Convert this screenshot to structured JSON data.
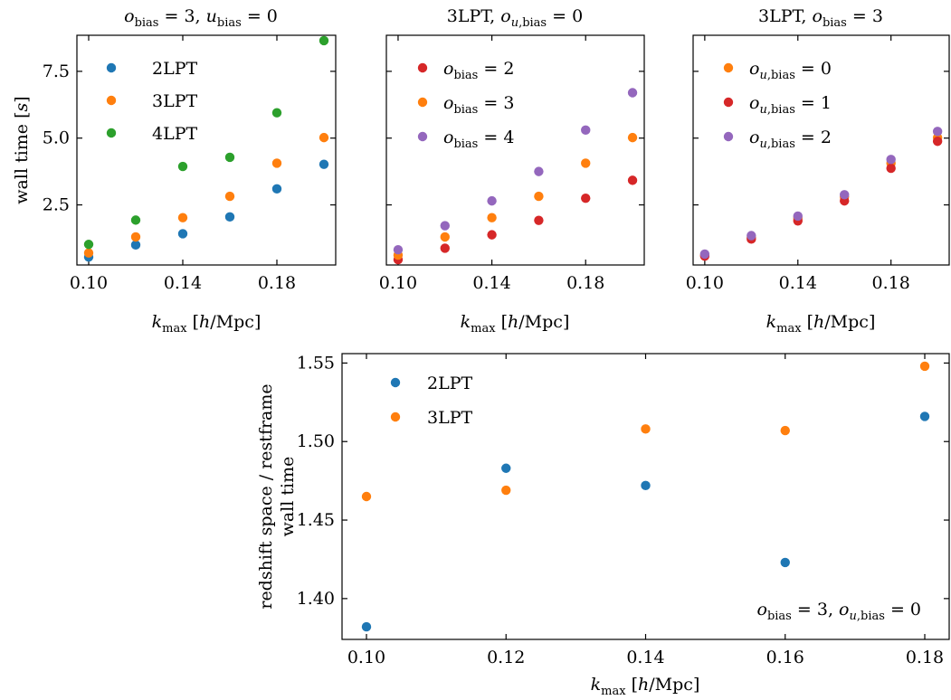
{
  "figure": {
    "panel_a_title": "o_bias = 3, u_bias = 0",
    "panel_b_title": "3LPT, o_u,bias = 0",
    "panel_c_title": "3LPT, o_bias = 3",
    "xlabel": "k_max [h/Mpc]",
    "ylabel_top": "wall time [s]",
    "ylabel_bottom_line1": "redshift space / restframe",
    "ylabel_bottom_line2": "wall time",
    "annotation_bottom": "o_bias = 3, o_u,bias = 0"
  },
  "colors": {
    "blue": "#1f77b4",
    "orange": "#ff7f0e",
    "green": "#2ca02c",
    "red": "#d62728",
    "purple": "#9467bd"
  },
  "chart_data": [
    {
      "type": "scatter",
      "title": "o_bias = 3, u_bias = 0",
      "xlabel": "k_max [h/Mpc]",
      "ylabel": "wall time [s]",
      "xlim": [
        0.095,
        0.205
      ],
      "ylim": [
        0.25,
        8.85
      ],
      "xticks": [
        0.1,
        0.14,
        0.18
      ],
      "xtick_labels": [
        "0.10",
        "0.14",
        "0.18"
      ],
      "yticks": [
        2.5,
        5.0,
        7.5
      ],
      "ytick_labels": [
        "2.5",
        "5.0",
        "7.5"
      ],
      "x": [
        0.1,
        0.12,
        0.14,
        0.16,
        0.18,
        0.2
      ],
      "legend_position": "upper-left",
      "series": [
        {
          "name": "2LPT",
          "color": "#1f77b4",
          "values": [
            0.55,
            1.0,
            1.42,
            2.05,
            3.1,
            4.02
          ]
        },
        {
          "name": "3LPT",
          "color": "#ff7f0e",
          "values": [
            0.7,
            1.3,
            2.02,
            2.82,
            4.06,
            5.02
          ]
        },
        {
          "name": "4LPT",
          "color": "#2ca02c",
          "values": [
            1.02,
            1.93,
            3.94,
            4.28,
            5.95,
            8.65
          ]
        }
      ]
    },
    {
      "type": "scatter",
      "title": "3LPT, o_u,bias = 0",
      "xlabel": "k_max [h/Mpc]",
      "ylabel": "",
      "xlim": [
        0.095,
        0.205
      ],
      "ylim": [
        0.25,
        8.85
      ],
      "xticks": [
        0.1,
        0.14,
        0.18
      ],
      "xtick_labels": [
        "0.10",
        "0.14",
        "0.18"
      ],
      "yticks": [
        2.5,
        5.0,
        7.5
      ],
      "ytick_labels": [],
      "x": [
        0.1,
        0.12,
        0.14,
        0.16,
        0.18,
        0.2
      ],
      "legend_position": "upper-left",
      "series": [
        {
          "name": "o_bias = 2",
          "color": "#d62728",
          "values": [
            0.45,
            0.88,
            1.38,
            1.92,
            2.75,
            3.42
          ]
        },
        {
          "name": "o_bias = 3",
          "color": "#ff7f0e",
          "values": [
            0.62,
            1.3,
            2.02,
            2.82,
            4.06,
            5.02
          ]
        },
        {
          "name": "o_bias = 4",
          "color": "#9467bd",
          "values": [
            0.82,
            1.72,
            2.65,
            3.75,
            5.3,
            6.7
          ]
        }
      ]
    },
    {
      "type": "scatter",
      "title": "3LPT, o_bias = 3",
      "xlabel": "k_max [h/Mpc]",
      "ylabel": "",
      "xlim": [
        0.095,
        0.205
      ],
      "ylim": [
        0.25,
        8.85
      ],
      "xticks": [
        0.1,
        0.14,
        0.18
      ],
      "xtick_labels": [
        "0.10",
        "0.14",
        "0.18"
      ],
      "yticks": [
        2.5,
        5.0,
        7.5
      ],
      "ytick_labels": [],
      "x": [
        0.1,
        0.12,
        0.14,
        0.16,
        0.18,
        0.2
      ],
      "legend_position": "upper-left",
      "series": [
        {
          "name": "o_u,bias = 0",
          "color": "#ff7f0e",
          "values": [
            0.62,
            1.28,
            2.0,
            2.8,
            4.06,
            5.02
          ]
        },
        {
          "name": "o_u,bias = 1",
          "color": "#d62728",
          "values": [
            0.58,
            1.22,
            1.9,
            2.65,
            3.87,
            4.88
          ]
        },
        {
          "name": "o_u,bias = 2",
          "color": "#9467bd",
          "values": [
            0.66,
            1.35,
            2.08,
            2.88,
            4.2,
            5.25
          ]
        }
      ]
    },
    {
      "type": "scatter",
      "title": "",
      "xlabel": "k_max [h/Mpc]",
      "ylabel": "redshift space / restframe wall time",
      "xlim": [
        0.0965,
        0.1835
      ],
      "ylim": [
        1.374,
        1.556
      ],
      "xticks": [
        0.1,
        0.12,
        0.14,
        0.16,
        0.18
      ],
      "xtick_labels": [
        "0.10",
        "0.12",
        "0.14",
        "0.16",
        "0.18"
      ],
      "yticks": [
        1.4,
        1.45,
        1.5,
        1.55
      ],
      "ytick_labels": [
        "1.40",
        "1.45",
        "1.50",
        "1.55"
      ],
      "x": [
        0.1,
        0.12,
        0.14,
        0.16,
        0.18
      ],
      "legend_position": "upper-left",
      "annotation": "o_bias = 3, o_u,bias = 0",
      "series": [
        {
          "name": "2LPT",
          "color": "#1f77b4",
          "values": [
            1.382,
            1.483,
            1.472,
            1.423,
            1.516
          ]
        },
        {
          "name": "3LPT",
          "color": "#ff7f0e",
          "values": [
            1.465,
            1.469,
            1.508,
            1.507,
            1.548
          ]
        }
      ]
    }
  ]
}
